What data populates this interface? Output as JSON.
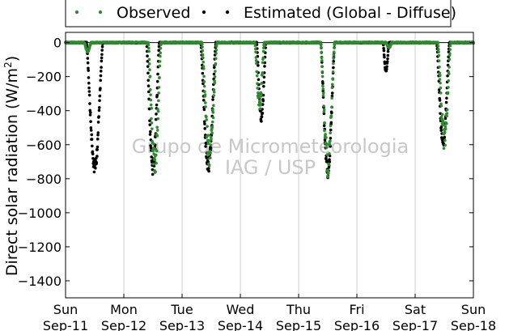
{
  "chart_data": {
    "type": "scatter",
    "title": "",
    "xlabel": "",
    "ylabel": "Direct solar radiation (W/m²)",
    "ylabel_parts": {
      "text": "Direct solar radiation (W/m",
      "sup": "2",
      "close": ")"
    },
    "ylim": [
      -1500,
      60
    ],
    "xlim": [
      0,
      7
    ],
    "yticks": [
      0,
      -200,
      -400,
      -600,
      -800,
      -1000,
      -1200,
      -1400
    ],
    "xticks": [
      {
        "x": 0,
        "day": "Sun",
        "date": "Sep-11"
      },
      {
        "x": 1,
        "day": "Mon",
        "date": "Sep-12"
      },
      {
        "x": 2,
        "day": "Tue",
        "date": "Sep-13"
      },
      {
        "x": 3,
        "day": "Wed",
        "date": "Sep-14"
      },
      {
        "x": 4,
        "day": "Thu",
        "date": "Sep-15"
      },
      {
        "x": 5,
        "day": "Fri",
        "date": "Sep-16"
      },
      {
        "x": 6,
        "day": "Sat",
        "date": "Sep-17"
      },
      {
        "x": 7,
        "day": "Sun",
        "date": "Sep-18"
      }
    ],
    "grid": "vertical",
    "legend_position": "top",
    "watermark": [
      "Grupo de Micrometeorologia",
      "IAG / USP"
    ],
    "series": [
      {
        "name": "Observed",
        "color": "#2e8b2e",
        "days": [
          {
            "peak": -50,
            "width": 0.06,
            "center": 0.38
          },
          {
            "peak": -700,
            "width": 0.11,
            "center": 1.53
          },
          {
            "peak": -650,
            "width": 0.13,
            "center": 2.47
          },
          {
            "peak": -360,
            "width": 0.08,
            "center": 3.33
          },
          {
            "peak": -700,
            "width": 0.12,
            "center": 4.5
          },
          {
            "peak": -30,
            "width": 0.05,
            "center": 5.55
          },
          {
            "peak": -560,
            "width": 0.11,
            "center": 6.5
          }
        ]
      },
      {
        "name": "Estimated (Global - Diffuse)",
        "color": "#000000",
        "days": [
          {
            "peak": -730,
            "width": 0.14,
            "center": 0.5
          },
          {
            "peak": -740,
            "width": 0.11,
            "center": 1.5
          },
          {
            "peak": -730,
            "width": 0.13,
            "center": 2.45
          },
          {
            "peak": -440,
            "width": 0.08,
            "center": 3.36
          },
          {
            "peak": -760,
            "width": 0.12,
            "center": 4.5
          },
          {
            "peak": -170,
            "width": 0.05,
            "center": 5.5
          },
          {
            "peak": -580,
            "width": 0.11,
            "center": 6.48
          }
        ]
      }
    ]
  }
}
